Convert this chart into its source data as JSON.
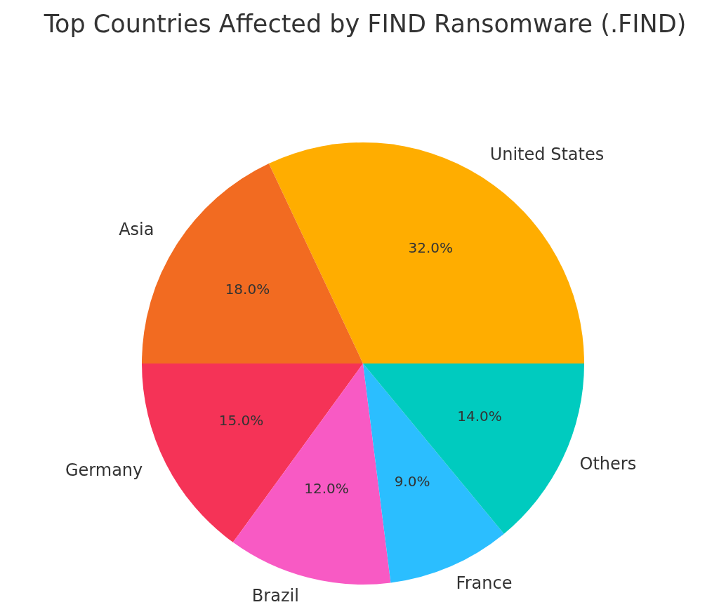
{
  "chart_data": {
    "type": "pie",
    "title": "Top Countries Affected by FIND Ransomware (.FIND)",
    "categories": [
      "United States",
      "Asia",
      "Germany",
      "Brazil",
      "France",
      "Others"
    ],
    "values": [
      32,
      18,
      15,
      12,
      9,
      14
    ],
    "colors": [
      "#ffad00",
      "#f26b21",
      "#f53357",
      "#f85ac4",
      "#2bbeff",
      "#00cbbf"
    ],
    "value_labels": [
      "32.0%",
      "18.0%",
      "15.0%",
      "12.0%",
      "9.0%",
      "14.0%"
    ]
  }
}
